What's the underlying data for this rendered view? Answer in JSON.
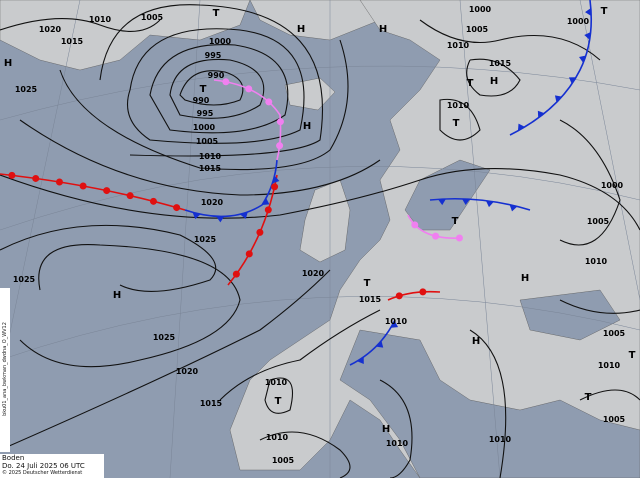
{
  "caption": {
    "title": "Boden",
    "datetime": "Do. 24 Juli 2025 06 UTC",
    "copyright": "© 2025 Deutscher Wetterdienst"
  },
  "side_label": "bku01_ana_bwkman_dwdna_O_WV12",
  "colors": {
    "sea": "#8f9cb0",
    "land": "#c9cbcd",
    "isobar": "#111111",
    "warm_front": "#e01010",
    "cold_front": "#1530d0",
    "occlusion": "#f080f0"
  },
  "pressure_labels": [
    "1010",
    "1005",
    "1020",
    "1015",
    "1025",
    "1000",
    "995",
    "990",
    "990",
    "995",
    "1000",
    "1005",
    "1010",
    "1015",
    "1020",
    "1025",
    "1000",
    "1005",
    "1010",
    "1015",
    "1010",
    "1000",
    "1000",
    "1005",
    "1010",
    "1020",
    "1015",
    "1025",
    "1025",
    "1020",
    "1015",
    "1010",
    "1010",
    "1005",
    "1010",
    "1010",
    "1010",
    "1005",
    "1005",
    "1010"
  ],
  "centers": [
    "H",
    "T",
    "T",
    "H",
    "H",
    "H",
    "H",
    "T",
    "T",
    "T",
    "T",
    "H",
    "T",
    "H",
    "T",
    "H",
    "H",
    "T",
    "T"
  ]
}
